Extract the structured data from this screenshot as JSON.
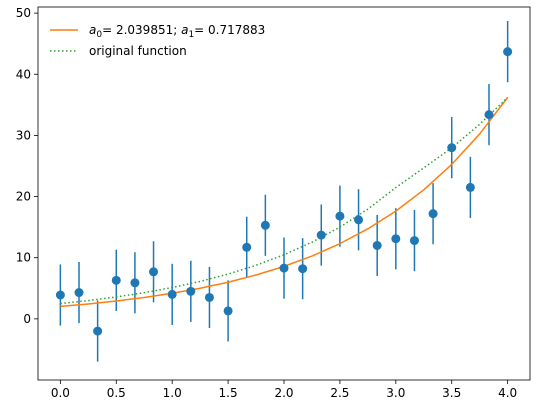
{
  "chart_data": {
    "type": "scatter",
    "title": "",
    "xlabel": "",
    "ylabel": "",
    "xlim": [
      -0.2,
      4.2
    ],
    "ylim": [
      -10,
      51
    ],
    "xticks": [
      "0.0",
      "0.5",
      "1.0",
      "1.5",
      "2.0",
      "2.5",
      "3.0",
      "3.5",
      "4.0"
    ],
    "yticks": [
      "0",
      "10",
      "20",
      "30",
      "40",
      "50"
    ],
    "grid": false,
    "legend_position": "upper-left",
    "series": [
      {
        "name": "",
        "kind": "errorbar-points",
        "color": "#1f77b4",
        "yerr": 5,
        "x": [
          0.0,
          0.1667,
          0.3333,
          0.5,
          0.6667,
          0.8333,
          1.0,
          1.1667,
          1.3333,
          1.5,
          1.6667,
          1.8333,
          2.0,
          2.1667,
          2.3333,
          2.5,
          2.6667,
          2.8333,
          3.0,
          3.1667,
          3.3333,
          3.5,
          3.6667,
          3.8333,
          4.0
        ],
        "y": [
          3.9,
          4.3,
          -2.0,
          6.3,
          5.9,
          7.7,
          4.0,
          4.5,
          3.5,
          1.3,
          11.7,
          15.3,
          8.3,
          8.2,
          13.7,
          16.8,
          16.2,
          12.0,
          13.1,
          12.8,
          17.2,
          28.0,
          21.5,
          33.4,
          43.7
        ]
      },
      {
        "name_parts": [
          "a",
          "0",
          "=  2.039851; ",
          "a",
          "1",
          "=  0.717883"
        ],
        "kind": "line",
        "color": "#ff7f0e",
        "x": [
          0.0,
          0.25,
          0.5,
          0.75,
          1.0,
          1.25,
          1.5,
          1.75,
          2.0,
          2.25,
          2.5,
          2.75,
          3.0,
          3.25,
          3.5,
          3.75,
          4.0
        ],
        "y": [
          2.04,
          2.43,
          2.92,
          3.49,
          4.18,
          5.0,
          5.99,
          7.17,
          8.58,
          10.27,
          12.3,
          14.72,
          17.62,
          21.1,
          25.26,
          30.24,
          36.2
        ]
      },
      {
        "name": "original function",
        "kind": "dotted-line",
        "color": "#2ca02c",
        "x": [
          0.0,
          0.25,
          0.5,
          0.75,
          1.0,
          1.25,
          1.5,
          1.75,
          2.0,
          2.25,
          2.5,
          2.75,
          3.0,
          3.25,
          3.5,
          3.75,
          4.0
        ],
        "y": [
          2.5,
          2.99,
          3.58,
          4.28,
          5.12,
          6.12,
          7.32,
          8.76,
          10.48,
          12.54,
          15.0,
          17.95,
          21.47,
          24.69,
          27.96,
          31.82,
          36.2
        ]
      }
    ]
  }
}
